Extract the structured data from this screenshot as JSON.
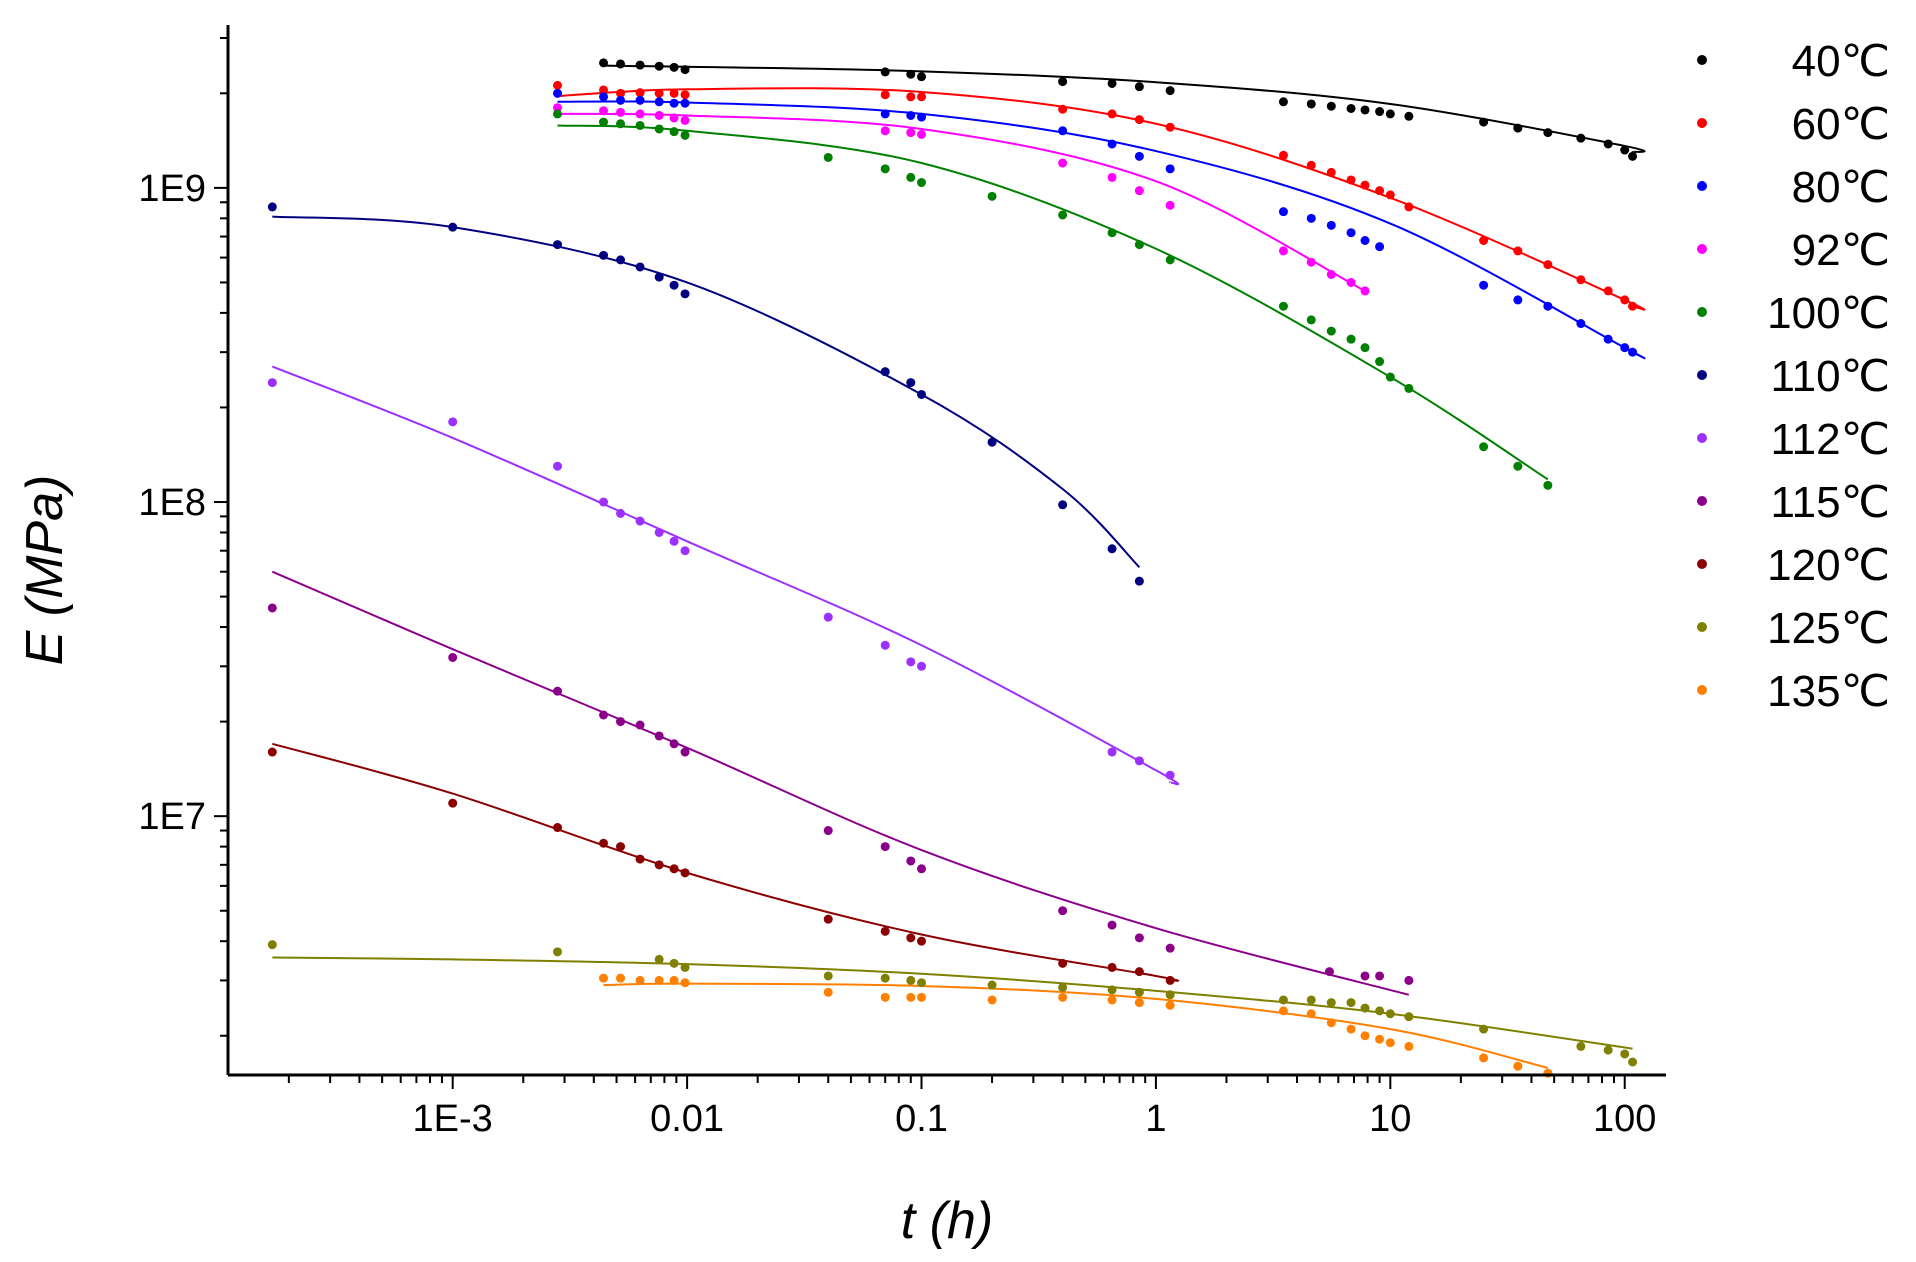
{
  "chart_data": {
    "type": "scatter",
    "title": "",
    "xlabel": "t (h)",
    "ylabel": "E (MPa)",
    "xscale": "log",
    "yscale": "log",
    "xlim": [
      0.00011,
      150
    ],
    "ylim": [
      1500000,
      3300000000
    ],
    "x_ticks": [
      {
        "value": 0.001,
        "label": "1E-3"
      },
      {
        "value": 0.01,
        "label": "0.01"
      },
      {
        "value": 0.1,
        "label": "0.1"
      },
      {
        "value": 1,
        "label": "1"
      },
      {
        "value": 10,
        "label": "10"
      },
      {
        "value": 100,
        "label": "100"
      }
    ],
    "y_ticks": [
      {
        "value": 10000000,
        "label": "1E7"
      },
      {
        "value": 100000000,
        "label": "1E8"
      },
      {
        "value": 1000000000,
        "label": "1E9"
      }
    ],
    "legend_position": "right",
    "series": [
      {
        "name": "40℃",
        "color": "#000000",
        "x": [
          0.0044,
          0.0052,
          0.0063,
          0.0076,
          0.0088,
          0.0098,
          0.07,
          0.09,
          0.1,
          0.4,
          0.65,
          0.85,
          1.15,
          3.5,
          4.6,
          5.6,
          6.8,
          7.8,
          9,
          10,
          12,
          25,
          35,
          47,
          65,
          85,
          100,
          108
        ],
        "y": [
          2500000000,
          2480000000,
          2460000000,
          2440000000,
          2420000000,
          2380000000,
          2340000000,
          2300000000,
          2260000000,
          2180000000,
          2150000000,
          2100000000,
          2040000000,
          1880000000,
          1850000000,
          1820000000,
          1790000000,
          1770000000,
          1750000000,
          1720000000,
          1690000000,
          1620000000,
          1550000000,
          1500000000,
          1440000000,
          1380000000,
          1320000000,
          1260000000
        ],
        "fit_x": [
          0.0044,
          0.01,
          0.1,
          1,
          10,
          100,
          108
        ],
        "fit_y": [
          2450000000,
          2430000000,
          2350000000,
          2170000000,
          1850000000,
          1360000000,
          1300000000
        ]
      },
      {
        "name": "60℃",
        "color": "#ff0000",
        "x": [
          0.0028,
          0.0044,
          0.0052,
          0.0063,
          0.0076,
          0.0088,
          0.0098,
          0.07,
          0.09,
          0.1,
          0.4,
          0.65,
          0.85,
          1.15,
          3.5,
          4.6,
          5.6,
          6.8,
          7.8,
          9,
          10,
          12,
          25,
          35,
          47,
          65,
          85,
          100,
          108
        ],
        "y": [
          2120000000,
          2050000000,
          2000000000,
          2010000000,
          2000000000,
          2000000000,
          1980000000,
          1980000000,
          1950000000,
          1950000000,
          1780000000,
          1720000000,
          1650000000,
          1560000000,
          1270000000,
          1180000000,
          1120000000,
          1060000000,
          1020000000,
          980000000,
          950000000,
          870000000,
          680000000,
          630000000,
          570000000,
          510000000,
          470000000,
          440000000,
          420000000
        ],
        "fit_x": [
          0.0028,
          0.01,
          0.1,
          1,
          10,
          100,
          108
        ],
        "fit_y": [
          1960000000,
          2060000000,
          2020000000,
          1600000000,
          930000000,
          440000000,
          420000000
        ]
      },
      {
        "name": "80℃",
        "color": "#0000ff",
        "x": [
          0.0028,
          0.0044,
          0.0052,
          0.0063,
          0.0076,
          0.0088,
          0.0098,
          0.07,
          0.09,
          0.1,
          0.4,
          0.65,
          0.85,
          1.15,
          3.5,
          4.6,
          5.6,
          6.8,
          7.8,
          9,
          25,
          35,
          47,
          65,
          85,
          100,
          108
        ],
        "y": [
          2000000000,
          1950000000,
          1900000000,
          1900000000,
          1880000000,
          1860000000,
          1860000000,
          1720000000,
          1700000000,
          1680000000,
          1520000000,
          1380000000,
          1260000000,
          1150000000,
          840000000,
          800000000,
          760000000,
          720000000,
          680000000,
          650000000,
          490000000,
          440000000,
          420000000,
          370000000,
          330000000,
          310000000,
          300000000
        ],
        "fit_x": [
          0.0028,
          0.01,
          0.1,
          1,
          10,
          100,
          108
        ],
        "fit_y": [
          1880000000,
          1870000000,
          1720000000,
          1310000000,
          770000000,
          310000000,
          300000000
        ]
      },
      {
        "name": "92℃",
        "color": "#ff00ff",
        "x": [
          0.0028,
          0.0044,
          0.0052,
          0.0063,
          0.0076,
          0.0088,
          0.0098,
          0.07,
          0.09,
          0.1,
          0.4,
          0.65,
          0.85,
          1.15,
          3.5,
          4.6,
          5.6,
          6.8,
          7.8
        ],
        "y": [
          1800000000,
          1760000000,
          1740000000,
          1720000000,
          1700000000,
          1670000000,
          1640000000,
          1520000000,
          1500000000,
          1480000000,
          1200000000,
          1080000000,
          980000000,
          880000000,
          630000000,
          580000000,
          530000000,
          500000000,
          470000000
        ],
        "fit_x": [
          0.0028,
          0.01,
          0.1,
          1,
          7.8
        ],
        "fit_y": [
          1720000000,
          1700000000,
          1540000000,
          1050000000,
          470000000
        ]
      },
      {
        "name": "100℃",
        "color": "#008000",
        "x": [
          0.0028,
          0.0044,
          0.0052,
          0.0063,
          0.0076,
          0.0088,
          0.0098,
          0.04,
          0.07,
          0.09,
          0.1,
          0.2,
          0.4,
          0.65,
          0.85,
          1.15,
          3.5,
          4.6,
          5.6,
          6.8,
          7.8,
          9,
          10,
          12,
          25,
          35,
          47
        ],
        "y": [
          1720000000,
          1620000000,
          1600000000,
          1580000000,
          1540000000,
          1510000000,
          1470000000,
          1250000000,
          1150000000,
          1080000000,
          1040000000,
          940000000,
          820000000,
          720000000,
          660000000,
          590000000,
          420000000,
          380000000,
          350000000,
          330000000,
          310000000,
          280000000,
          250000000,
          230000000,
          150000000,
          130000000,
          113000000
        ],
        "fit_x": [
          0.0028,
          0.01,
          0.1,
          1,
          10,
          47
        ],
        "fit_y": [
          1580000000,
          1520000000,
          1200000000,
          640000000,
          250000000,
          118000000
        ]
      },
      {
        "name": "110℃",
        "color": "#000080",
        "x": [
          0.00017,
          0.001,
          0.0028,
          0.0044,
          0.0052,
          0.0063,
          0.0076,
          0.0088,
          0.0098,
          0.07,
          0.09,
          0.1,
          0.2,
          0.4,
          0.65,
          0.85
        ],
        "y": [
          870000000,
          750000000,
          660000000,
          610000000,
          590000000,
          560000000,
          520000000,
          490000000,
          460000000,
          260000000,
          240000000,
          220000000,
          155000000,
          98000000,
          71000000,
          56000000
        ],
        "fit_x": [
          0.00017,
          0.001,
          0.01,
          0.1,
          0.4,
          0.85
        ],
        "fit_y": [
          810000000,
          750000000,
          500000000,
          220000000,
          110000000,
          62000000
        ]
      },
      {
        "name": "112℃",
        "color": "#9b30ff",
        "x": [
          0.00017,
          0.001,
          0.0028,
          0.0044,
          0.0052,
          0.0063,
          0.0076,
          0.0088,
          0.0098,
          0.04,
          0.07,
          0.09,
          0.1,
          0.65,
          0.85,
          1.15
        ],
        "y": [
          240000000,
          180000000,
          130000000,
          100000000,
          92000000,
          87000000,
          80000000,
          75000000,
          70000000,
          43000000,
          35000000,
          31000000,
          30000000,
          16000000,
          15000000,
          13500000
        ],
        "fit_x": [
          0.00017,
          0.001,
          0.01,
          0.1,
          1,
          1.15
        ],
        "fit_y": [
          270000000,
          160000000,
          75000000,
          35000000,
          14000000,
          12800000
        ]
      },
      {
        "name": "115℃",
        "color": "#8b008b",
        "x": [
          0.00017,
          0.001,
          0.0028,
          0.0044,
          0.0052,
          0.0063,
          0.0076,
          0.0088,
          0.0098,
          0.04,
          0.07,
          0.09,
          0.1,
          0.4,
          0.65,
          0.85,
          1.15,
          5.5,
          7.8,
          9,
          12
        ],
        "y": [
          46000000,
          32000000,
          25000000,
          21000000,
          20000000,
          19500000,
          18000000,
          17000000,
          16000000,
          9000000,
          8000000,
          7200000,
          6800000,
          5000000,
          4500000,
          4100000,
          3800000,
          3200000,
          3100000,
          3100000,
          3000000
        ],
        "fit_x": [
          0.00017,
          0.001,
          0.01,
          0.1,
          1,
          12
        ],
        "fit_y": [
          60000000,
          34000000,
          16500000,
          7800000,
          4400000,
          2700000
        ]
      },
      {
        "name": "120℃",
        "color": "#8b0000",
        "x": [
          0.00017,
          0.001,
          0.0028,
          0.0044,
          0.0052,
          0.0063,
          0.0076,
          0.0088,
          0.0098,
          0.04,
          0.07,
          0.09,
          0.1,
          0.4,
          0.65,
          0.85,
          1.15
        ],
        "y": [
          16000000,
          11000000,
          9200000,
          8200000,
          8000000,
          7300000,
          7000000,
          6800000,
          6600000,
          4700000,
          4300000,
          4100000,
          4000000,
          3400000,
          3300000,
          3200000,
          3000000
        ],
        "fit_x": [
          0.00017,
          0.001,
          0.01,
          0.1,
          1,
          1.15
        ],
        "fit_y": [
          17000000,
          11800000,
          6600000,
          4200000,
          3100000,
          3000000
        ]
      },
      {
        "name": "125℃",
        "color": "#808000",
        "x": [
          0.00017,
          0.0028,
          0.0076,
          0.0088,
          0.0098,
          0.04,
          0.07,
          0.09,
          0.1,
          0.2,
          0.4,
          0.65,
          0.85,
          1.15,
          3.5,
          4.6,
          5.6,
          6.8,
          7.8,
          9,
          10,
          12,
          25,
          65,
          85,
          100,
          108
        ],
        "y": [
          3900000,
          3700000,
          3500000,
          3400000,
          3300000,
          3100000,
          3050000,
          3000000,
          2950000,
          2900000,
          2850000,
          2800000,
          2750000,
          2700000,
          2600000,
          2600000,
          2550000,
          2550000,
          2450000,
          2400000,
          2350000,
          2300000,
          2100000,
          1850000,
          1800000,
          1750000,
          1650000
        ],
        "fit_x": [
          0.00017,
          0.001,
          0.01,
          0.1,
          1,
          10,
          108
        ],
        "fit_y": [
          3550000,
          3500000,
          3380000,
          3150000,
          2780000,
          2350000,
          1820000
        ]
      },
      {
        "name": "135℃",
        "color": "#ff8000",
        "x": [
          0.0044,
          0.0052,
          0.0063,
          0.0076,
          0.0088,
          0.0098,
          0.04,
          0.07,
          0.09,
          0.1,
          0.2,
          0.4,
          0.65,
          0.85,
          1.15,
          3.5,
          4.6,
          5.6,
          6.8,
          7.8,
          9,
          10,
          12,
          25,
          35,
          47
        ],
        "y": [
          3050000,
          3050000,
          3000000,
          3000000,
          3000000,
          2950000,
          2750000,
          2650000,
          2650000,
          2650000,
          2600000,
          2650000,
          2600000,
          2550000,
          2500000,
          2400000,
          2350000,
          2200000,
          2100000,
          2000000,
          1950000,
          1900000,
          1850000,
          1700000,
          1600000,
          1520000
        ],
        "fit_x": [
          0.0044,
          0.01,
          0.1,
          1,
          10,
          47
        ],
        "fit_y": [
          2900000,
          2930000,
          2880000,
          2620000,
          2100000,
          1580000
        ]
      }
    ]
  }
}
